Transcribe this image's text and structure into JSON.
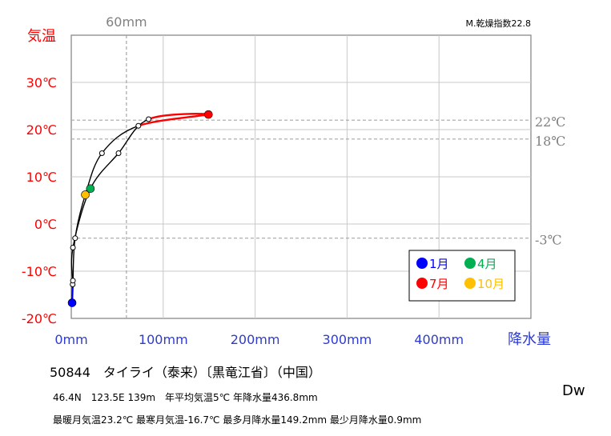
{
  "chart_data": {
    "type": "line",
    "title": "",
    "xlabel": "降水量",
    "ylabel": "気温",
    "xlim": [
      0,
      500
    ],
    "ylim": [
      -20,
      40
    ],
    "x_ticks": [
      "0mm",
      "100mm",
      "200mm",
      "300mm",
      "400mm"
    ],
    "y_ticks": [
      "30℃",
      "20℃",
      "10℃",
      "0℃",
      "-10℃",
      "-20℃"
    ],
    "top_label": "60mm",
    "right_labels": [
      "22℃",
      "18℃",
      "-3℃"
    ],
    "annotation": "M.乾燥指数22.8",
    "reference_lines": {
      "x": [
        60
      ],
      "y": [
        22,
        18,
        -3
      ]
    },
    "months": [
      1,
      2,
      3,
      4,
      5,
      6,
      7,
      8,
      9,
      10,
      11,
      12
    ],
    "precip_mm": [
      0.9,
      1.5,
      1.8,
      20.8,
      51.4,
      84.1,
      149.2,
      73.0,
      33.4,
      15.3,
      4.2,
      1.8
    ],
    "temp_c": [
      -16.7,
      -12.8,
      -5.0,
      7.5,
      15.0,
      22.2,
      23.2,
      20.8,
      15.0,
      6.2,
      -3.0,
      -12.0
    ],
    "highlight": [
      {
        "label": "1月",
        "month": 1,
        "color": "#0000ff"
      },
      {
        "label": "4月",
        "month": 4,
        "color": "#00b050"
      },
      {
        "label": "7月",
        "month": 7,
        "color": "#ff0000"
      },
      {
        "label": "10月",
        "month": 10,
        "color": "#ffc000"
      }
    ],
    "grid": true,
    "legend_position": "bottom-right"
  },
  "station": "50844　タイライ（泰来）〔黒竜江省〕（中国）",
  "info_line1": "46.4N　123.5E 139m　年平均気温5℃ 年降水量436.8mm",
  "info_line2": "最暖月気温23.2℃ 最寒月気温-16.7℃ 最多月降水量149.2mm 最少月降水量0.9mm",
  "tag": "Dw"
}
